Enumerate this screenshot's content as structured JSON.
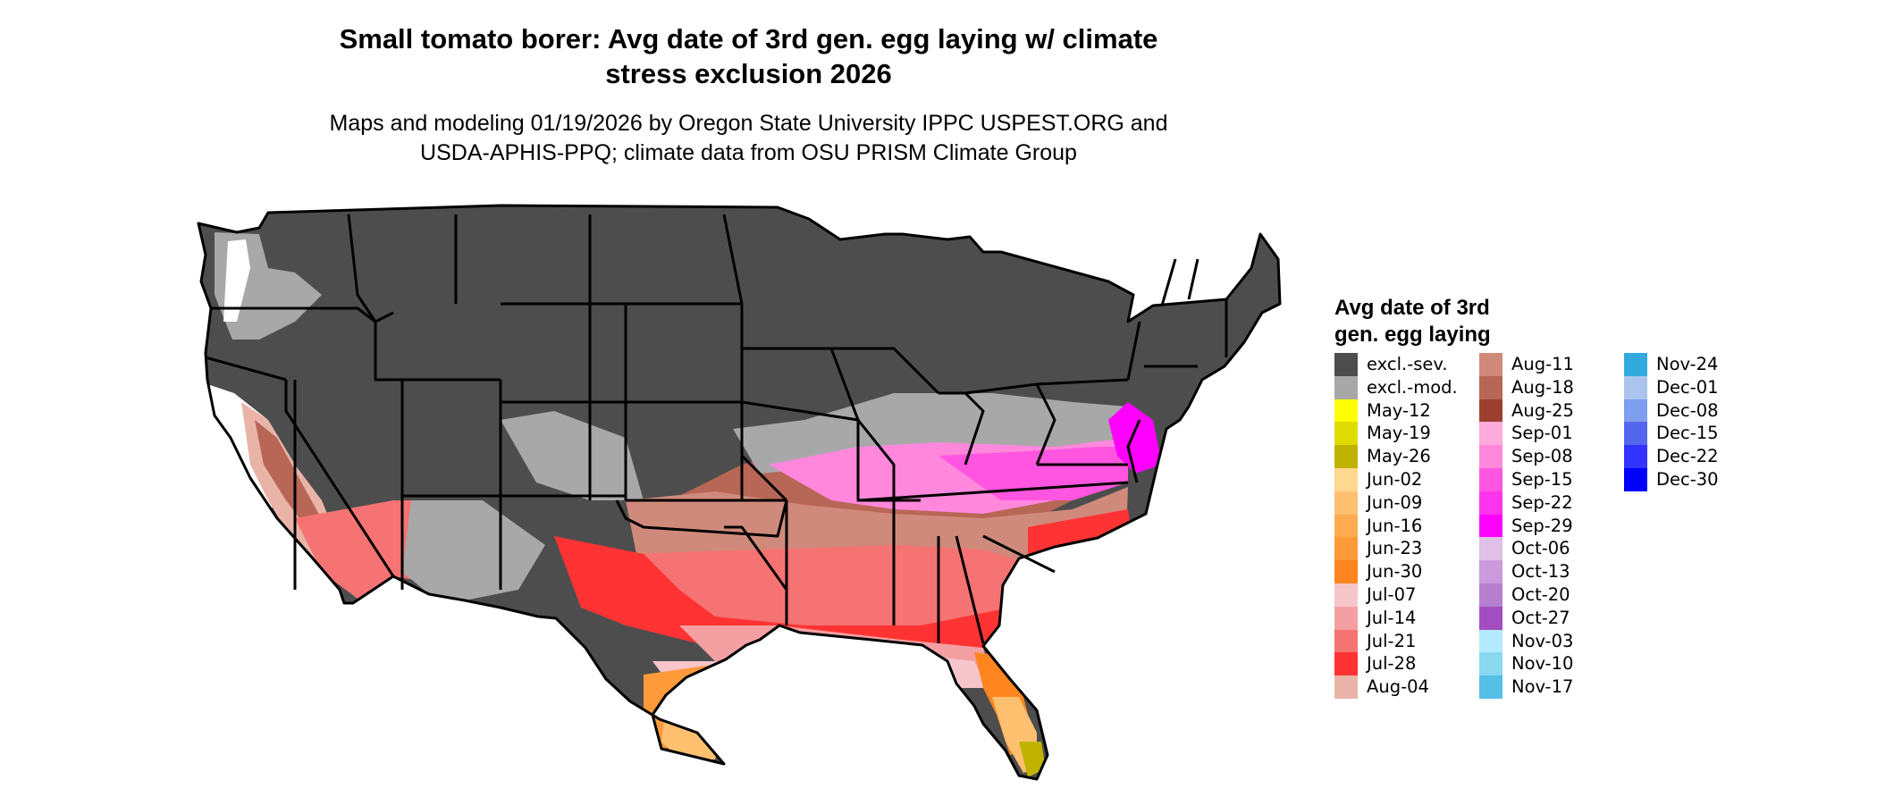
{
  "title": {
    "line1": "Small tomato borer: Avg date of 3rd gen. egg laying w/ climate",
    "line2": "stress exclusion 2026"
  },
  "subtitle": {
    "line1": "Maps and modeling 01/19/2026 by Oregon State University IPPC USPEST.ORG and",
    "line2": "USDA-APHIS-PPQ; climate data from OSU PRISM Climate Group"
  },
  "legend": {
    "title_line1": "Avg date of 3rd",
    "title_line2": "gen. egg laying",
    "items": [
      {
        "label": "excl.-sev.",
        "color": "#4d4d4d"
      },
      {
        "label": "excl.-mod.",
        "color": "#a8a8a8"
      },
      {
        "label": "May-12",
        "color": "#ffff00"
      },
      {
        "label": "May-19",
        "color": "#e0dc00"
      },
      {
        "label": "May-26",
        "color": "#bfb300"
      },
      {
        "label": "Jun-02",
        "color": "#ffd890"
      },
      {
        "label": "Jun-09",
        "color": "#ffc070"
      },
      {
        "label": "Jun-16",
        "color": "#ffac50"
      },
      {
        "label": "Jun-23",
        "color": "#ff9a3a"
      },
      {
        "label": "Jun-30",
        "color": "#ff8520"
      },
      {
        "label": "Jul-07",
        "color": "#f6c6cb"
      },
      {
        "label": "Jul-14",
        "color": "#f4a0a3"
      },
      {
        "label": "Jul-21",
        "color": "#f57373"
      },
      {
        "label": "Jul-28",
        "color": "#ff3333"
      },
      {
        "label": "Aug-04",
        "color": "#e9b4a7"
      },
      {
        "label": "Aug-11",
        "color": "#d08a7c"
      },
      {
        "label": "Aug-18",
        "color": "#b86656"
      },
      {
        "label": "Aug-25",
        "color": "#9b3f2f"
      },
      {
        "label": "Sep-01",
        "color": "#ffaadd"
      },
      {
        "label": "Sep-08",
        "color": "#ff88dd"
      },
      {
        "label": "Sep-15",
        "color": "#ff55e0"
      },
      {
        "label": "Sep-22",
        "color": "#ff33ee"
      },
      {
        "label": "Sep-29",
        "color": "#ff00ff"
      },
      {
        "label": "Oct-06",
        "color": "#dfc0e6"
      },
      {
        "label": "Oct-13",
        "color": "#cc99dd"
      },
      {
        "label": "Oct-20",
        "color": "#b67fd0"
      },
      {
        "label": "Oct-27",
        "color": "#a24ec0"
      },
      {
        "label": "Nov-03",
        "color": "#b3eaff"
      },
      {
        "label": "Nov-10",
        "color": "#88d8f0"
      },
      {
        "label": "Nov-17",
        "color": "#55bfe6"
      },
      {
        "label": "Nov-24",
        "color": "#33aadd"
      },
      {
        "label": "Dec-01",
        "color": "#aac4ee"
      },
      {
        "label": "Dec-08",
        "color": "#7f9ef0"
      },
      {
        "label": "Dec-15",
        "color": "#5566ee"
      },
      {
        "label": "Dec-22",
        "color": "#3333ff"
      },
      {
        "label": "Dec-30",
        "color": "#0000ff"
      }
    ]
  },
  "map_colors": {
    "state_border": "#000000",
    "background": "#ffffff"
  }
}
